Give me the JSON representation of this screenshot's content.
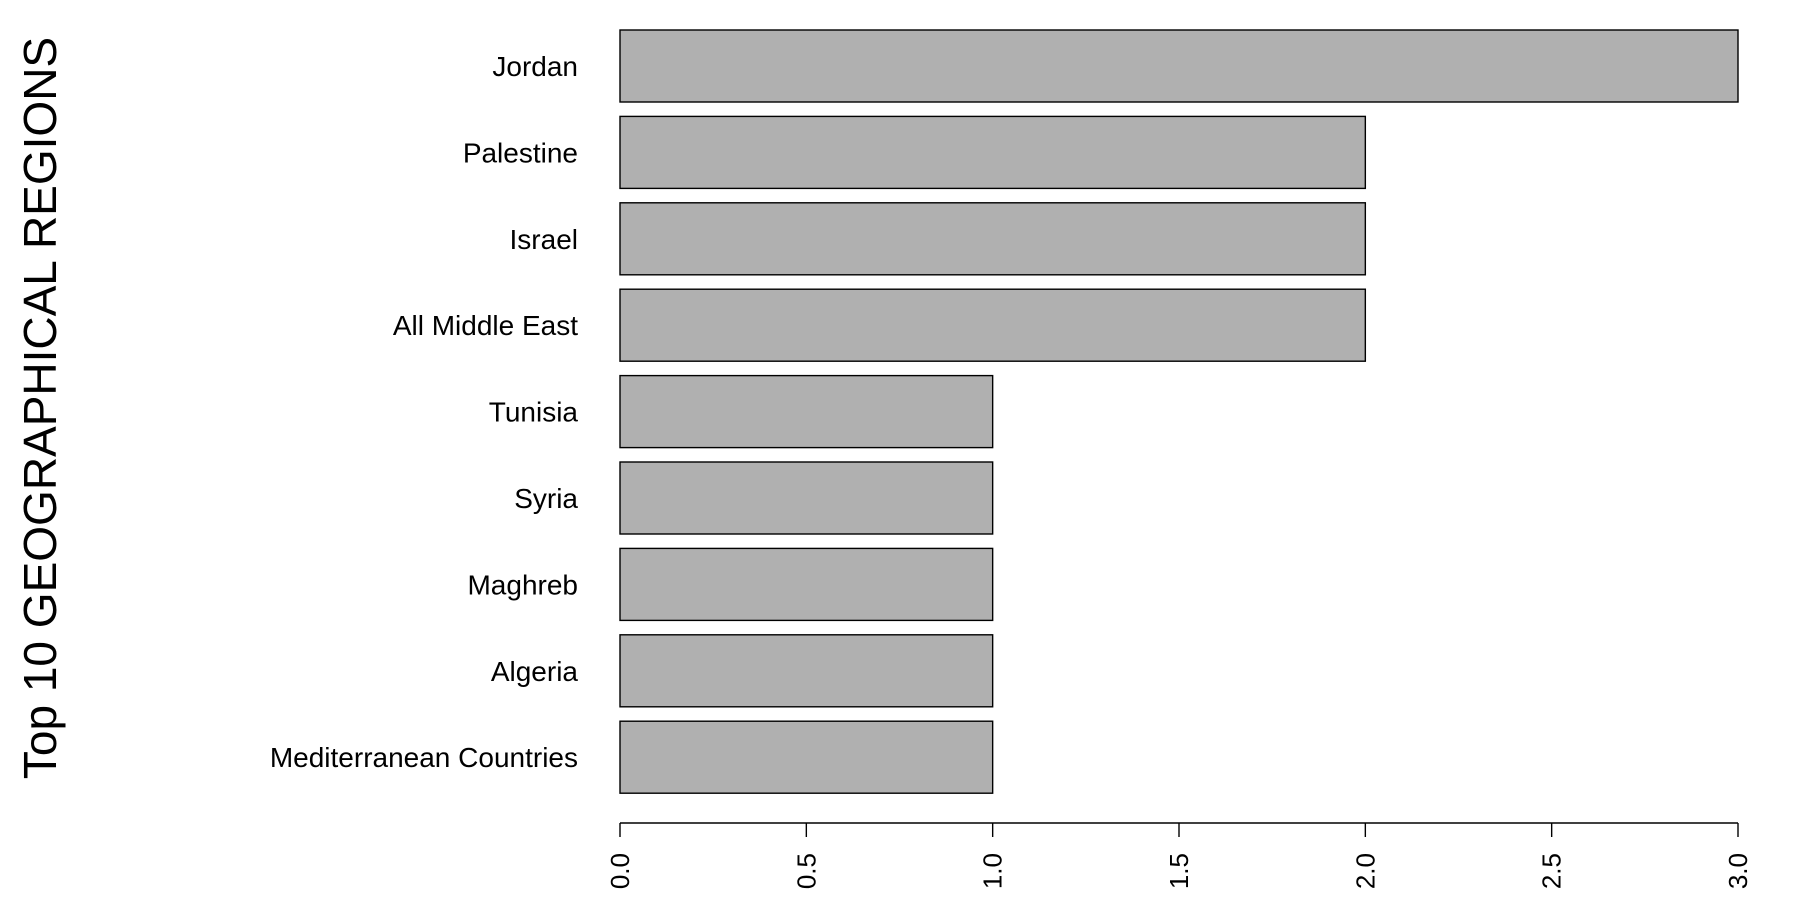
{
  "chart_data": {
    "type": "bar",
    "orientation": "horizontal",
    "title": "Top 10 GEOGRAPHICAL REGIONS",
    "xlabel": "",
    "ylabel": "",
    "categories": [
      "Jordan",
      "Palestine",
      "Israel",
      "All Middle East",
      "Tunisia",
      "Syria",
      "Maghreb",
      "Algeria",
      "Mediterranean Countries"
    ],
    "values": [
      3,
      2,
      2,
      2,
      1,
      1,
      1,
      1,
      1
    ],
    "xlim": [
      0,
      3
    ],
    "x_ticks": [
      "0.0",
      "0.5",
      "1.0",
      "1.5",
      "2.0",
      "2.5",
      "3.0"
    ],
    "grid": false,
    "legend": "none",
    "colors": {
      "bar_fill": "#b0b0b0",
      "bar_stroke": "#000000",
      "text": "#000000"
    }
  }
}
